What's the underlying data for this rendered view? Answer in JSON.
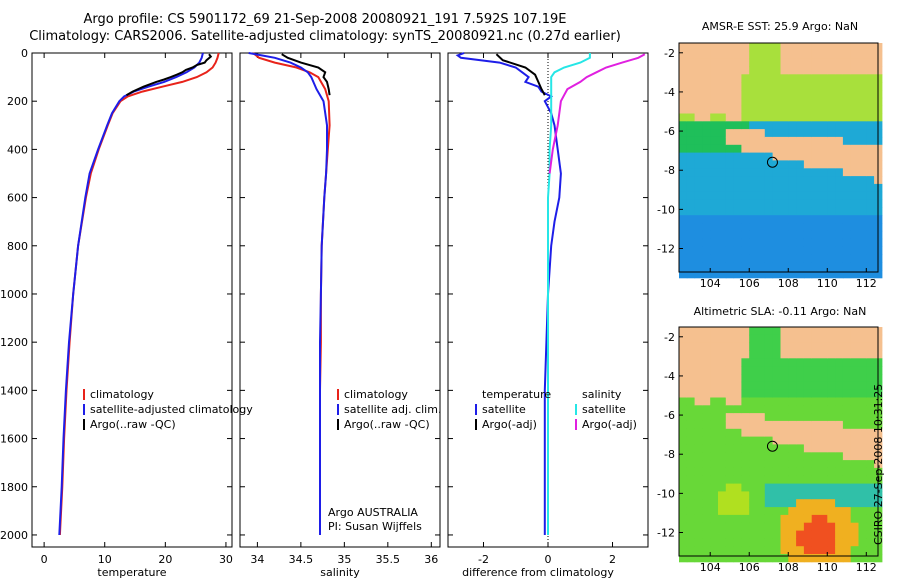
{
  "header": {
    "title_line1": "Argo profile: CS 5901172_69 21-Sep-2008 20080921_191 7.592S 107.19E",
    "title_line2": "Climatology: CARS2006. Satellite-adjusted climatology: synTS_20080921.nc (0.27d earlier)"
  },
  "maps": {
    "sst_title": "AMSR-E SST: 25.9 Argo: NaN",
    "sla_title": "Altimetric SLA: -0.11 Argo: NaN",
    "lat_ticks": [
      -2,
      -4,
      -6,
      -8,
      -10,
      -12
    ],
    "lon_ticks": [
      104,
      106,
      108,
      110,
      112
    ],
    "lat_range": [
      -13.2,
      -1.5
    ],
    "lon_range": [
      102.4,
      112.6
    ],
    "argo_position": {
      "lon": 107.19,
      "lat": -7.592
    }
  },
  "side_note": "CSIRO 27-Sep-2008 10:31:25",
  "colors": {
    "climatology": "#e8231a",
    "satellite": "#1e1ee8",
    "argo": "#000000",
    "satellite_salinity": "#26e6e6",
    "argo_salinity": "#e020e0",
    "land": "#f5c08f"
  },
  "chart_data": [
    {
      "type": "line",
      "name": "temperature-profile",
      "xlabel": "temperature",
      "ylabel": "",
      "xlim": [
        -2,
        31
      ],
      "ylim": [
        2050,
        0
      ],
      "xticks": [
        0,
        10,
        20,
        30
      ],
      "yticks": [
        0,
        200,
        400,
        600,
        800,
        1000,
        1200,
        1400,
        1600,
        1800,
        2000
      ],
      "legend": {
        "position": "lower-middle",
        "entries": [
          "climatology",
          "satellite-adjusted climatology",
          "Argo(..raw -QC)"
        ]
      },
      "series": [
        {
          "name": "climatology",
          "color": "#e8231a",
          "depth": [
            0,
            20,
            40,
            60,
            80,
            100,
            120,
            140,
            160,
            180,
            200,
            250,
            300,
            400,
            500,
            600,
            800,
            1000,
            1200,
            1400,
            1600,
            1800,
            2000
          ],
          "values": [
            28.8,
            28.6,
            28.3,
            27.8,
            26.8,
            25.2,
            22.8,
            19.5,
            16.2,
            13.8,
            12.6,
            11.3,
            10.5,
            9.0,
            7.7,
            6.9,
            5.6,
            4.8,
            4.2,
            3.7,
            3.3,
            3.0,
            2.6
          ]
        },
        {
          "name": "satellite-adjusted climatology",
          "color": "#1e1ee8",
          "depth": [
            0,
            20,
            40,
            60,
            80,
            100,
            120,
            140,
            160,
            180,
            200,
            250,
            300,
            400,
            500,
            600,
            800,
            1000,
            1200,
            1400,
            1600,
            1800,
            2000
          ],
          "values": [
            26.2,
            26.0,
            25.6,
            24.8,
            23.5,
            21.8,
            19.8,
            17.2,
            14.8,
            13.2,
            12.4,
            11.2,
            10.4,
            8.9,
            7.5,
            6.8,
            5.6,
            4.8,
            4.1,
            3.6,
            3.2,
            2.9,
            2.5
          ]
        },
        {
          "name": "Argo(..raw -QC)",
          "color": "#000000",
          "depth": [
            5,
            15,
            30,
            40,
            50,
            60,
            70,
            80,
            90,
            100,
            110,
            120,
            140,
            160,
            175
          ],
          "values": [
            27.2,
            27.5,
            26.8,
            26.5,
            25.2,
            24.5,
            23.4,
            22.8,
            21.9,
            20.9,
            19.8,
            18.5,
            16.4,
            14.6,
            13.6
          ]
        }
      ]
    },
    {
      "type": "line",
      "name": "salinity-profile",
      "xlabel": "salinity",
      "ylabel": "",
      "xlim": [
        33.8,
        36.1
      ],
      "ylim": [
        2050,
        0
      ],
      "xticks": [
        34,
        34.5,
        35,
        35.5,
        36
      ],
      "xtick_labels": [
        "34",
        "34.5",
        "35",
        "35.5",
        "36"
      ],
      "legend": {
        "position": "lower-right",
        "entries": [
          "climatology",
          "satellite adj. clim.",
          "Argo(..raw -QC)"
        ]
      },
      "annotations": [
        "Argo AUSTRALIA",
        "PI: Susan Wijffels"
      ],
      "series": [
        {
          "name": "climatology",
          "color": "#e8231a",
          "depth": [
            0,
            20,
            40,
            60,
            80,
            100,
            150,
            200,
            300,
            400,
            500,
            600,
            800,
            1000,
            1200,
            1400,
            1600,
            1800,
            2000
          ],
          "values": [
            33.95,
            34.02,
            34.2,
            34.45,
            34.6,
            34.7,
            34.78,
            34.82,
            34.83,
            34.81,
            34.79,
            34.77,
            34.74,
            34.73,
            34.73,
            34.72,
            34.72,
            34.72,
            34.72
          ]
        },
        {
          "name": "satellite adj. clim.",
          "color": "#1e1ee8",
          "depth": [
            0,
            10,
            20,
            40,
            60,
            80,
            100,
            150,
            200,
            300,
            400,
            500,
            600,
            800,
            1000,
            1200,
            1400,
            1600,
            1800,
            2000
          ],
          "values": [
            33.9,
            34.05,
            34.2,
            34.38,
            34.5,
            34.58,
            34.62,
            34.68,
            34.76,
            34.8,
            34.8,
            34.79,
            34.77,
            34.74,
            34.73,
            34.72,
            34.72,
            34.72,
            34.72,
            34.72
          ]
        },
        {
          "name": "Argo(..raw -QC)",
          "color": "#000000",
          "depth": [
            5,
            20,
            40,
            60,
            80,
            100,
            120,
            150,
            175
          ],
          "values": [
            34.28,
            34.35,
            34.5,
            34.7,
            34.78,
            34.76,
            34.8,
            34.82,
            34.83
          ]
        }
      ]
    },
    {
      "type": "line",
      "name": "difference-profile",
      "xlabel": "difference from climatology",
      "ylabel": "",
      "xlim": [
        -3.1,
        3.1
      ],
      "ylim": [
        2050,
        0
      ],
      "xticks": [
        -2,
        0,
        2
      ],
      "legend": {
        "position": "lower-middle",
        "headings": [
          "temperature",
          "salinity"
        ],
        "entries": [
          "satellite",
          "Argo(-adj)",
          "satellite",
          "Argo(-adj)"
        ]
      },
      "series": [
        {
          "name": "temperature satellite",
          "color": "#1e1ee8",
          "depth": [
            0,
            10,
            20,
            40,
            60,
            80,
            100,
            120,
            140,
            160,
            180,
            200,
            250,
            300,
            400,
            500,
            600,
            700,
            800,
            900,
            1000,
            1200,
            1400,
            1600,
            1800,
            2000
          ],
          "values": [
            -2.6,
            -2.8,
            -2.7,
            -1.5,
            -1.0,
            -0.8,
            -0.6,
            -0.7,
            -0.3,
            -0.2,
            0.1,
            -0.1,
            0.1,
            0.2,
            0.3,
            0.4,
            0.35,
            0.2,
            0.1,
            0.05,
            0.0,
            -0.05,
            -0.1,
            -0.1,
            -0.1,
            -0.1
          ]
        },
        {
          "name": "temperature Argo(-adj)",
          "color": "#000000",
          "depth": [
            5,
            30,
            60,
            90,
            120,
            150,
            175
          ],
          "values": [
            -1.6,
            -1.4,
            -0.7,
            -0.4,
            -0.3,
            -0.2,
            -0.1
          ]
        },
        {
          "name": "salinity satellite",
          "color": "#26e6e6",
          "depth": [
            0,
            20,
            40,
            60,
            80,
            100,
            150,
            200,
            300,
            400,
            500,
            600,
            800,
            1000,
            1200,
            1400,
            1600,
            1800,
            2000
          ],
          "values": [
            1.3,
            1.3,
            1.0,
            0.5,
            0.2,
            0.1,
            0.1,
            0.1,
            0.1,
            0.05,
            0.05,
            0.0,
            0.0,
            0.0,
            0.0,
            0.0,
            0.0,
            0.0,
            0.0
          ]
        },
        {
          "name": "salinity Argo(-adj)",
          "color": "#e020e0",
          "depth": [
            5,
            20,
            40,
            60,
            80,
            100,
            120,
            150,
            175,
            200,
            300,
            400,
            500
          ],
          "values": [
            3.0,
            2.8,
            2.3,
            1.8,
            1.5,
            1.2,
            1.0,
            0.6,
            0.5,
            0.4,
            0.3,
            0.15,
            0.05
          ]
        }
      ]
    }
  ]
}
